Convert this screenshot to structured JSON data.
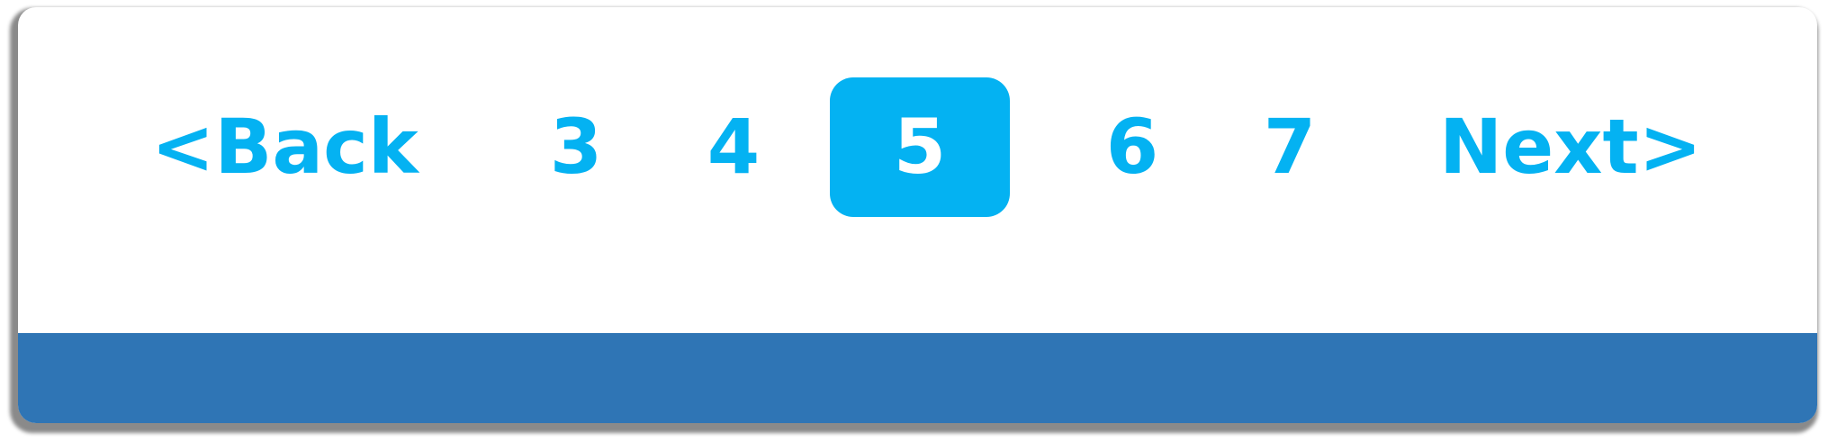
{
  "pagination": {
    "back_label": "<Back",
    "next_label": "Next>",
    "pages": [
      "3",
      "4",
      "5",
      "6",
      "7"
    ],
    "current_page": "5"
  },
  "colors": {
    "accent": "#04b2f2",
    "active_text": "#ffffff",
    "footer_bar": "#2f75b5",
    "background": "#ffffff"
  }
}
